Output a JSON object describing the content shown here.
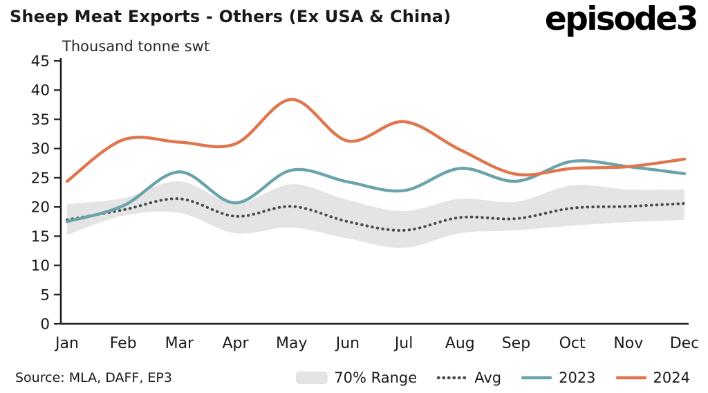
{
  "header": {
    "logo": "episode3"
  },
  "footer": {
    "source": "Source: MLA, DAFF, EP3"
  },
  "chart_data": {
    "type": "line",
    "title": "Sheep Meat Exports - Others (Ex USA & China)",
    "ylabel": "Thousand tonne swt",
    "xlabel": "",
    "ylim": [
      0,
      45
    ],
    "yticks": [
      0,
      5,
      10,
      15,
      20,
      25,
      30,
      35,
      40,
      45
    ],
    "grid": false,
    "legend_position": "bottom",
    "categories": [
      "Jan",
      "Feb",
      "Mar",
      "Apr",
      "May",
      "Jun",
      "Jul",
      "Aug",
      "Sep",
      "Oct",
      "Nov",
      "Dec"
    ],
    "series": [
      {
        "name": "70% Range",
        "type": "band",
        "color": "#e4e4e4",
        "upper": [
          20.5,
          21.5,
          24.4,
          20.6,
          23.9,
          21.2,
          19.3,
          21.4,
          20.9,
          23.7,
          23.0,
          23.0
        ],
        "lower": [
          15.2,
          18.5,
          19.0,
          15.5,
          16.5,
          14.6,
          13.0,
          15.5,
          16.0,
          16.8,
          17.4,
          17.8
        ]
      },
      {
        "name": "Avg",
        "type": "dotted",
        "color": "#454e4d",
        "values": [
          17.8,
          19.5,
          21.4,
          18.4,
          20.1,
          17.5,
          16.0,
          18.2,
          18.0,
          19.8,
          20.1,
          20.6
        ]
      },
      {
        "name": "2023",
        "type": "line",
        "color": "#6ba3ab",
        "values": [
          17.5,
          20.2,
          26.0,
          20.7,
          26.3,
          24.3,
          22.8,
          26.6,
          24.4,
          27.8,
          26.9,
          25.7
        ]
      },
      {
        "name": "2024",
        "type": "line",
        "color": "#df764e",
        "values": [
          24.4,
          31.5,
          31.1,
          30.8,
          38.4,
          31.3,
          34.6,
          29.8,
          25.6,
          26.6,
          26.9,
          28.2
        ]
      }
    ],
    "axis_color": "#1f1f1f"
  }
}
